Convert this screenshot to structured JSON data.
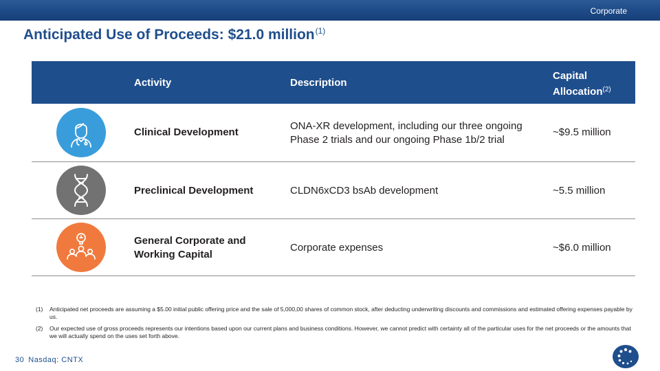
{
  "header": {
    "section_label": "Corporate"
  },
  "title": {
    "text": "Anticipated Use of Proceeds: $21.0 million",
    "footnote_ref": "(1)"
  },
  "table": {
    "columns": {
      "activity": "Activity",
      "description": "Description",
      "allocation_line1": "Capital",
      "allocation_line2": "Allocation",
      "allocation_ref": "(2)"
    },
    "rows": [
      {
        "icon": "clinician-icon",
        "icon_color": "#3a9ddb",
        "activity_line1": "Clinical Development",
        "activity_line2": "",
        "description_line1": "ONA-XR development, including our three ongoing",
        "description_line2": "Phase 2 trials and our ongoing Phase 1b/2 trial",
        "allocation": "~$9.5 million"
      },
      {
        "icon": "dna-icon",
        "icon_color": "#727272",
        "activity_line1": "Preclinical Development",
        "activity_line2": "",
        "description_line1": "CLDN6xCD3 bsAb development",
        "description_line2": "",
        "allocation": "~5.5 million"
      },
      {
        "icon": "team-idea-icon",
        "icon_color": "#f07a3e",
        "activity_line1": "General Corporate and",
        "activity_line2": "Working Capital",
        "description_line1": "Corporate expenses",
        "description_line2": "",
        "allocation": "~$6.0 million"
      }
    ]
  },
  "footnotes": [
    {
      "num": "(1)",
      "text": "Anticipated net proceeds are assuming a $5.00 initial public offering price and the sale of 5,000,00 shares of common stock, after deducting underwriting discounts and commissions and estimated offering expenses payable by us."
    },
    {
      "num": "(2)",
      "text": "Our expected use of gross proceeds represents our intentions based upon our current plans and business conditions. However, we cannot predict with certainty all of the particular uses for the net proceeds or the amounts that we will actually spend on the uses set forth above."
    }
  ],
  "footer": {
    "page": "30",
    "ticker": "Nasdaq: CNTX"
  },
  "colors": {
    "brand_blue": "#1f4e8c",
    "divider": "#8c8c8c"
  }
}
